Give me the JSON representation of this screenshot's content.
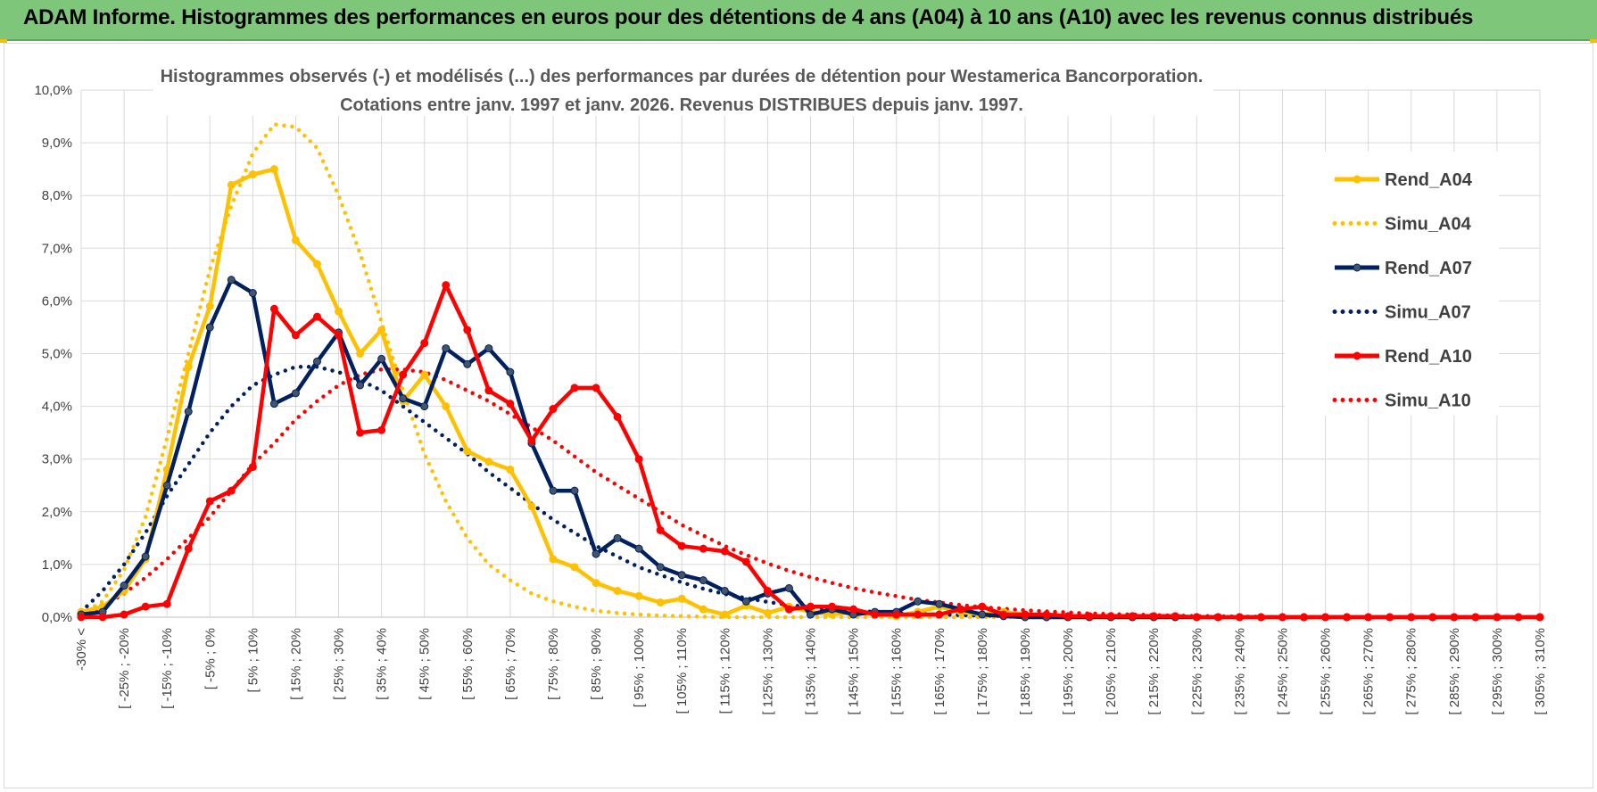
{
  "header": {
    "banner": "ADAM Informe. Histogrammes des performances en euros pour des détentions de 4 ans (A04) à 10 ans (A10) avec les revenus connus distribués"
  },
  "colors": {
    "banner_bg": "#7dc67a",
    "a04": "#ffc000",
    "a07": "#002060",
    "a10": "#ff0000",
    "grid": "#d9d9d9"
  },
  "chart_data": {
    "type": "line",
    "title_line1": "Histogrammes observés (-) et modélisés (...) des performances par durées de détention pour Westamerica Bancorporation.",
    "title_line2": "Cotations entre janv. 1997 et janv. 2026. Revenus DISTRIBUES depuis janv. 1997.",
    "xlabel": "",
    "ylabel": "",
    "ylim": [
      0,
      10
    ],
    "y_ticks": [
      "0,0%",
      "1,0%",
      "2,0%",
      "3,0%",
      "4,0%",
      "5,0%",
      "6,0%",
      "7,0%",
      "8,0%",
      "9,0%",
      "10,0%"
    ],
    "categories_labeled": [
      "-30% <",
      "[ -25% ; -20%",
      "[ -15% ; -10%",
      "[ -5% ; 0%",
      "[ 5% ; 10%",
      "[ 15% ; 20%",
      "[ 25% ; 30%",
      "[ 35% ; 40%",
      "[ 45% ; 50%",
      "[ 55% ; 60%",
      "[ 65% ; 70%",
      "[ 75% ; 80%",
      "[ 85% ; 90%",
      "[ 95% ; 100%",
      "[ 105% ; 110%",
      "[ 115% ; 120%",
      "[ 125% ; 130%",
      "[ 135% ; 140%",
      "[ 145% ; 150%",
      "[ 155% ; 160%",
      "[ 165% ; 170%",
      "[ 175% ; 180%",
      "[ 185% ; 190%",
      "[ 195% ; 200%",
      "[ 205% ; 210%",
      "[ 215% ; 220%",
      "[ 225% ; 230%",
      "[ 235% ; 240%",
      "[ 245% ; 250%",
      "[ 255% ; 260%",
      "[ 265% ; 270%",
      "[ 275% ; 280%",
      "[ 285% ; 290%",
      "[ 295% ; 300%",
      "[ 305% ; 310%"
    ],
    "category_count": 69,
    "legend": [
      {
        "name": "Rend_A04",
        "color": "#ffc000",
        "style": "solid"
      },
      {
        "name": "Simu_A04",
        "color": "#ffc000",
        "style": "dotted"
      },
      {
        "name": "Rend_A07",
        "color": "#002060",
        "style": "solid"
      },
      {
        "name": "Simu_A07",
        "color": "#002060",
        "style": "dotted"
      },
      {
        "name": "Rend_A10",
        "color": "#ff0000",
        "style": "solid"
      },
      {
        "name": "Simu_A10",
        "color": "#ff0000",
        "style": "dotted"
      }
    ],
    "series": [
      {
        "name": "Rend_A04",
        "color": "#ffc000",
        "dash": false,
        "markers": true,
        "values": [
          0.1,
          0.2,
          0.5,
          1.1,
          2.8,
          4.75,
          5.9,
          8.2,
          8.4,
          8.5,
          7.15,
          6.7,
          5.8,
          5.0,
          5.45,
          4.1,
          4.6,
          4.0,
          3.15,
          2.95,
          2.8,
          2.1,
          1.1,
          0.95,
          0.65,
          0.5,
          0.4,
          0.28,
          0.35,
          0.15,
          0.05,
          0.22,
          0.08,
          0.2,
          0.1,
          0.05,
          0.1,
          0.05,
          0.02,
          0.1,
          0.2,
          0.1,
          0.05,
          0.1,
          0.05,
          0,
          0,
          0,
          0,
          0,
          0,
          0,
          0,
          0,
          0,
          0,
          0,
          0,
          0,
          0,
          0,
          0,
          0,
          0,
          0,
          0,
          0,
          0,
          0
        ]
      },
      {
        "name": "Simu_A04",
        "color": "#ffc000",
        "dash": true,
        "markers": false,
        "values": [
          0.05,
          0.3,
          0.9,
          1.9,
          3.4,
          5.0,
          6.6,
          7.8,
          8.8,
          9.35,
          9.3,
          8.9,
          8.0,
          6.9,
          5.6,
          4.3,
          3.1,
          2.2,
          1.5,
          1.0,
          0.7,
          0.45,
          0.3,
          0.2,
          0.12,
          0.08,
          0.05,
          0.03,
          0.02,
          0.01,
          0,
          0,
          0,
          0,
          0,
          0,
          0,
          0,
          0,
          0,
          0,
          0,
          0,
          0,
          0,
          0,
          0,
          0,
          0,
          0,
          0,
          0,
          0,
          0,
          0,
          0,
          0,
          0,
          0,
          0,
          0,
          0,
          0,
          0,
          0,
          0,
          0,
          0,
          0
        ]
      },
      {
        "name": "Rend_A07",
        "color": "#002060",
        "dash": false,
        "markers": true,
        "values": [
          0.05,
          0.1,
          0.6,
          1.15,
          2.5,
          3.9,
          5.5,
          6.4,
          6.15,
          4.05,
          4.25,
          4.85,
          5.4,
          4.4,
          4.9,
          4.15,
          4.0,
          5.1,
          4.8,
          5.1,
          4.65,
          3.3,
          2.4,
          2.4,
          1.2,
          1.5,
          1.3,
          0.95,
          0.8,
          0.7,
          0.5,
          0.3,
          0.45,
          0.55,
          0.05,
          0.15,
          0.05,
          0.1,
          0.1,
          0.3,
          0.25,
          0.15,
          0.05,
          0.02,
          0,
          0,
          0,
          0,
          0,
          0,
          0,
          0,
          0,
          0,
          0,
          0,
          0,
          0,
          0,
          0,
          0,
          0,
          0,
          0,
          0,
          0,
          0,
          0,
          0
        ]
      },
      {
        "name": "Simu_A07",
        "color": "#002060",
        "dash": true,
        "markers": false,
        "values": [
          0.1,
          0.5,
          1.0,
          1.6,
          2.3,
          2.9,
          3.5,
          4.0,
          4.4,
          4.6,
          4.75,
          4.75,
          4.65,
          4.5,
          4.3,
          4.0,
          3.7,
          3.4,
          3.1,
          2.75,
          2.45,
          2.15,
          1.85,
          1.6,
          1.35,
          1.15,
          0.95,
          0.8,
          0.66,
          0.54,
          0.44,
          0.36,
          0.29,
          0.23,
          0.19,
          0.15,
          0.12,
          0.1,
          0.08,
          0.06,
          0.05,
          0.04,
          0.03,
          0.02,
          0.02,
          0.01,
          0.01,
          0,
          0,
          0,
          0,
          0,
          0,
          0,
          0,
          0,
          0,
          0,
          0,
          0,
          0,
          0,
          0,
          0,
          0,
          0,
          0,
          0,
          0
        ]
      },
      {
        "name": "Rend_A10",
        "color": "#ff0000",
        "dash": false,
        "markers": true,
        "values": [
          0,
          0,
          0.05,
          0.2,
          0.25,
          1.3,
          2.2,
          2.4,
          2.85,
          5.85,
          5.35,
          5.7,
          5.35,
          3.5,
          3.55,
          4.6,
          5.2,
          6.3,
          5.45,
          4.3,
          4.05,
          3.35,
          3.95,
          4.35,
          4.35,
          3.8,
          3.0,
          1.65,
          1.35,
          1.3,
          1.25,
          1.05,
          0.5,
          0.15,
          0.2,
          0.2,
          0.15,
          0.05,
          0.05,
          0.05,
          0.05,
          0.15,
          0.2,
          0.05,
          0.05,
          0.05,
          0.02,
          0.02,
          0.02,
          0.02,
          0.02,
          0.02,
          0,
          0,
          0,
          0,
          0,
          0,
          0,
          0,
          0,
          0,
          0,
          0,
          0,
          0,
          0,
          0,
          0
        ]
      },
      {
        "name": "Simu_A10",
        "color": "#ff0000",
        "dash": true,
        "markers": false,
        "values": [
          0.05,
          0.2,
          0.45,
          0.75,
          1.1,
          1.5,
          1.9,
          2.4,
          2.9,
          3.3,
          3.75,
          4.1,
          4.4,
          4.6,
          4.7,
          4.7,
          4.65,
          4.5,
          4.3,
          4.1,
          3.85,
          3.6,
          3.35,
          3.05,
          2.75,
          2.5,
          2.25,
          2.0,
          1.75,
          1.55,
          1.35,
          1.18,
          1.02,
          0.88,
          0.76,
          0.65,
          0.55,
          0.47,
          0.4,
          0.33,
          0.28,
          0.23,
          0.19,
          0.16,
          0.13,
          0.11,
          0.09,
          0.07,
          0.06,
          0.05,
          0.04,
          0.03,
          0.02,
          0.02,
          0.01,
          0.01,
          0,
          0,
          0,
          0,
          0,
          0,
          0,
          0,
          0,
          0,
          0,
          0,
          0
        ]
      }
    ]
  }
}
